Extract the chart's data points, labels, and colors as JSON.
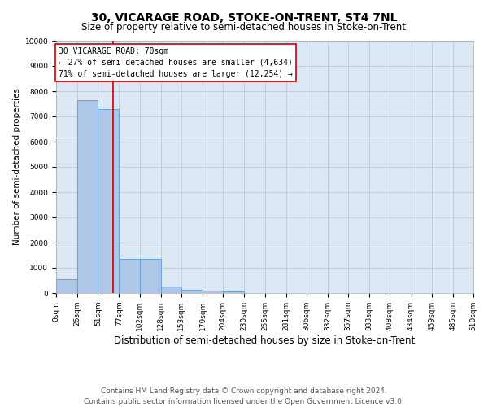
{
  "title": "30, VICARAGE ROAD, STOKE-ON-TRENT, ST4 7NL",
  "subtitle": "Size of property relative to semi-detached houses in Stoke-on-Trent",
  "xlabel": "Distribution of semi-detached houses by size in Stoke-on-Trent",
  "ylabel": "Number of semi-detached properties",
  "footer_line1": "Contains HM Land Registry data © Crown copyright and database right 2024.",
  "footer_line2": "Contains public sector information licensed under the Open Government Licence v3.0.",
  "annotation_title": "30 VICARAGE ROAD: 70sqm",
  "annotation_line1": "← 27% of semi-detached houses are smaller (4,634)",
  "annotation_line2": "71% of semi-detached houses are larger (12,254) →",
  "property_size_sqm": 70,
  "bar_edges": [
    0,
    26,
    51,
    77,
    102,
    128,
    153,
    179,
    204,
    230,
    255,
    281,
    306,
    332,
    357,
    383,
    408,
    434,
    459,
    485,
    510
  ],
  "bar_heights": [
    560,
    7650,
    7280,
    1350,
    1340,
    270,
    130,
    90,
    75,
    0,
    0,
    0,
    0,
    0,
    0,
    0,
    0,
    0,
    0,
    0
  ],
  "bar_color": "#aec6e8",
  "bar_edgecolor": "#5b9bd5",
  "vline_color": "#cc0000",
  "vline_x": 70,
  "annotation_box_color": "#ffffff",
  "annotation_box_edgecolor": "#cc0000",
  "background_color": "#ffffff",
  "plot_bg_color": "#dce9f5",
  "grid_color": "#c0cfe0",
  "ylim": [
    0,
    10000
  ],
  "yticks": [
    0,
    1000,
    2000,
    3000,
    4000,
    5000,
    6000,
    7000,
    8000,
    9000,
    10000
  ],
  "tick_labels": [
    "0sqm",
    "26sqm",
    "51sqm",
    "77sqm",
    "102sqm",
    "128sqm",
    "153sqm",
    "179sqm",
    "204sqm",
    "230sqm",
    "255sqm",
    "281sqm",
    "306sqm",
    "332sqm",
    "357sqm",
    "383sqm",
    "408sqm",
    "434sqm",
    "459sqm",
    "485sqm",
    "510sqm"
  ],
  "title_fontsize": 10,
  "subtitle_fontsize": 8.5,
  "xlabel_fontsize": 8.5,
  "ylabel_fontsize": 7.5,
  "tick_fontsize": 6.5,
  "annotation_fontsize": 7,
  "footer_fontsize": 6.5
}
